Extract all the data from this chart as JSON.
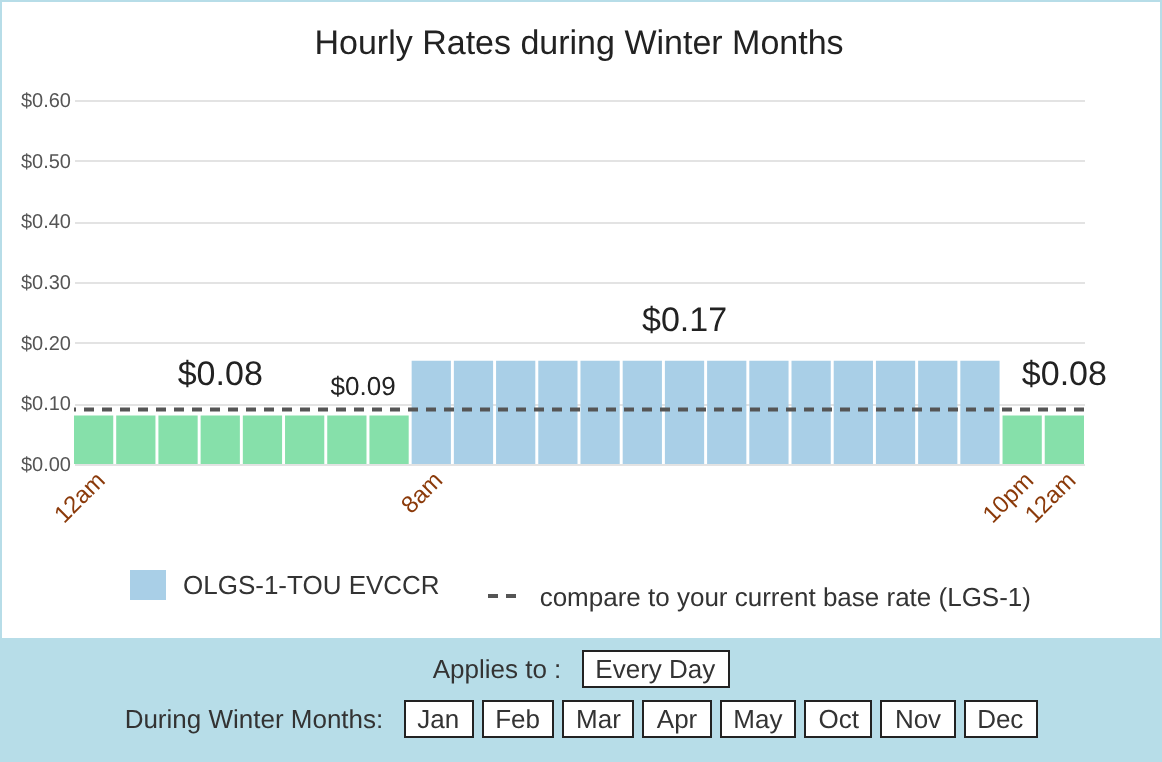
{
  "chart_data": {
    "type": "bar",
    "title": "Hourly Rates during Winter Months",
    "categories": [
      "12am",
      null,
      null,
      null,
      null,
      null,
      null,
      null,
      "8am",
      null,
      null,
      null,
      null,
      null,
      null,
      null,
      null,
      null,
      null,
      null,
      null,
      null,
      "10pm",
      "12am"
    ],
    "ylim": [
      0,
      0.6
    ],
    "yticks": [
      {
        "value": 0,
        "label": "$0.00"
      },
      {
        "value": 0.1,
        "label": "$0.10"
      },
      {
        "value": 0.2,
        "label": "$0.20"
      },
      {
        "value": 0.3,
        "label": "$0.30"
      },
      {
        "value": 0.4,
        "label": "$0.40"
      },
      {
        "value": 0.5,
        "label": "$0.50"
      },
      {
        "value": 0.6,
        "label": "$0.60"
      }
    ],
    "grid": "y",
    "legend": "bottom",
    "series": [
      {
        "name": "OLGS-1-TOU EVCCR",
        "color": "#a9cfe7",
        "values": [
          0.08,
          0.08,
          0.08,
          0.08,
          0.08,
          0.08,
          0.08,
          0.08,
          0.17,
          0.17,
          0.17,
          0.17,
          0.17,
          0.17,
          0.17,
          0.17,
          0.17,
          0.17,
          0.17,
          0.17,
          0.17,
          0.17,
          0.08,
          0.08
        ],
        "colors": [
          "#86e0aa",
          "#86e0aa",
          "#86e0aa",
          "#86e0aa",
          "#86e0aa",
          "#86e0aa",
          "#86e0aa",
          "#86e0aa",
          "#a9cfe7",
          "#a9cfe7",
          "#a9cfe7",
          "#a9cfe7",
          "#a9cfe7",
          "#a9cfe7",
          "#a9cfe7",
          "#a9cfe7",
          "#a9cfe7",
          "#a9cfe7",
          "#a9cfe7",
          "#a9cfe7",
          "#a9cfe7",
          "#a9cfe7",
          "#86e0aa",
          "#86e0aa"
        ],
        "value_labels": [
          null,
          null,
          null,
          "$0.08",
          null,
          null,
          null,
          null,
          null,
          null,
          null,
          null,
          null,
          null,
          "$0.17",
          null,
          null,
          null,
          null,
          null,
          null,
          null,
          null,
          "$0.08"
        ]
      }
    ],
    "ref_lines": [
      {
        "axis": "y",
        "value": 0.09,
        "label": "compare to your current base rate (LGS-1)",
        "color": "#555555",
        "line_style": "dashed"
      }
    ],
    "annotations": [
      {
        "text": "$0.09",
        "x": "8am",
        "y": 0.09
      },
      "Applies to :",
      "Every Day",
      "During Winter Months:",
      "Jan",
      "Feb",
      "Mar",
      "Apr",
      "May",
      "Oct",
      "Nov",
      "Dec"
    ]
  }
}
